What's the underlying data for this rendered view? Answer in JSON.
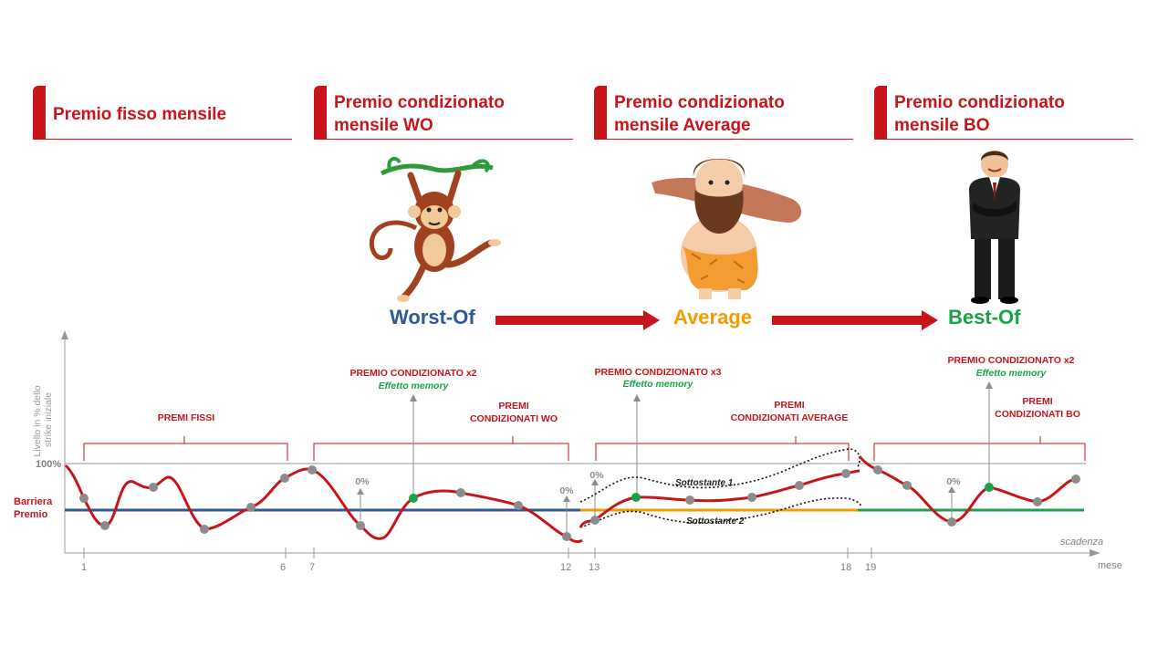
{
  "headers": [
    {
      "line1": "Premio fisso mensile",
      "line2": ""
    },
    {
      "line1": "Premio condizionato",
      "line2": "mensile WO"
    },
    {
      "line1": "Premio condizionato",
      "line2": "mensile Average"
    },
    {
      "line1": "Premio condizionato",
      "line2": "mensile BO"
    }
  ],
  "types": {
    "worst": "Worst-Of",
    "average": "Average",
    "best": "Best-Of"
  },
  "colors": {
    "red": "#c8151b",
    "blue": "#2d5a94",
    "orange": "#f39c00",
    "green": "#19a347",
    "grey": "#7f7f7f"
  },
  "icons": [
    "monkey-icon",
    "caveman-icon",
    "businessman-icon"
  ],
  "axis": {
    "ylabel_line1": "Livello in % dello",
    "ylabel_line2": "strike iniziale",
    "level_100": "100%",
    "barrier_line1": "Barriera",
    "barrier_line2": "Premio",
    "scadenza": "scadenza",
    "mese": "mese",
    "ticks": [
      "1",
      "6",
      "7",
      "12",
      "13",
      "18",
      "19"
    ]
  },
  "annotations": {
    "premi_fissi": "PREMI FISSI",
    "wo_cond_line1": "PREMIO CONDIZIONATO  x2",
    "wo_cond_line2": "Effetto memory",
    "wo_premi_line1": "PREMI",
    "wo_premi_line2": "CONDIZIONATI  WO",
    "avg_cond_line1": "PREMIO CONDIZIONATO  x3",
    "avg_cond_line2": "Effetto memory",
    "avg_premi_line1": "PREMI",
    "avg_premi_line2": "CONDIZIONATI  AVERAGE",
    "bo_cond_line1": "PREMIO CONDIZIONATO  x2",
    "bo_cond_line2": "Effetto memory",
    "bo_premi_line1": "PREMI",
    "bo_premi_line2": "CONDIZIONATI  BO",
    "zero": "0%",
    "sottostante1": "Sottostante 1",
    "sottostante2": "Sottostante 2"
  }
}
